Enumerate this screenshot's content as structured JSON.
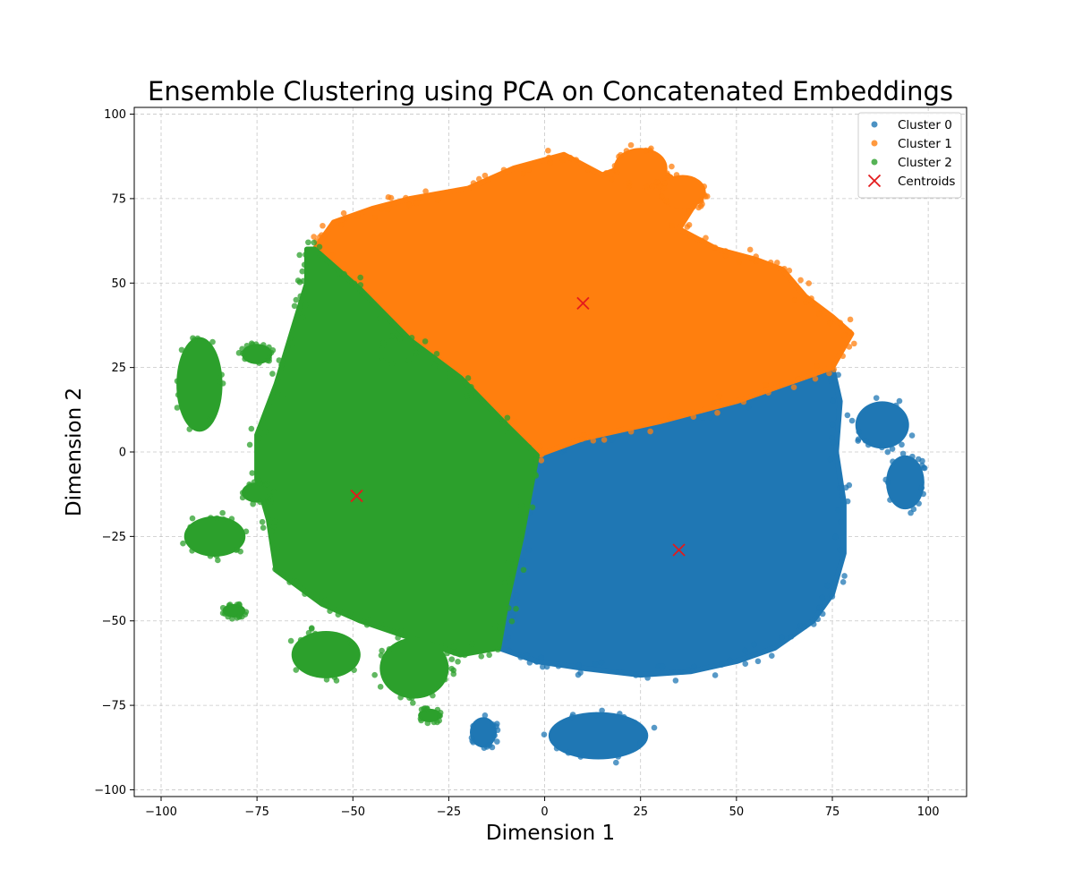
{
  "chart_data": {
    "type": "scatter",
    "title": "Ensemble Clustering using PCA on Concatenated Embeddings",
    "xlabel": "Dimension 1",
    "ylabel": "Dimension 2",
    "xlim": [
      -107,
      110
    ],
    "ylim": [
      -102,
      102
    ],
    "xticks": [
      -100,
      -75,
      -50,
      -25,
      0,
      25,
      50,
      75,
      100
    ],
    "yticks": [
      -100,
      -75,
      -50,
      -25,
      0,
      25,
      50,
      75,
      100
    ],
    "grid": true,
    "legend_position": "top-right",
    "series": [
      {
        "name": "Cluster 0",
        "color": "#1f77b4",
        "regions": [
          {
            "shape": "polygon",
            "points": [
              [
                -2,
                -1
              ],
              [
                10,
                4
              ],
              [
                30,
                9
              ],
              [
                50,
                15
              ],
              [
                65,
                21
              ],
              [
                75,
                25
              ],
              [
                77,
                15
              ],
              [
                76,
                0
              ],
              [
                78,
                -15
              ],
              [
                78,
                -30
              ],
              [
                75,
                -42
              ],
              [
                70,
                -50
              ],
              [
                60,
                -58
              ],
              [
                50,
                -62
              ],
              [
                38,
                -65
              ],
              [
                25,
                -66
              ],
              [
                10,
                -64
              ],
              [
                -2,
                -62
              ],
              [
                -12,
                -58
              ],
              [
                -10,
                -45
              ],
              [
                -6,
                -25
              ]
            ]
          },
          {
            "shape": "ellipse",
            "center": [
              88,
              8
            ],
            "rx": 7,
            "ry": 7
          },
          {
            "shape": "ellipse",
            "center": [
              94,
              -9
            ],
            "rx": 5,
            "ry": 8
          },
          {
            "shape": "ellipse",
            "center": [
              14,
              -84
            ],
            "rx": 13,
            "ry": 7
          },
          {
            "shape": "ellipse",
            "center": [
              -16,
              -83
            ],
            "rx": 3.5,
            "ry": 4.5
          }
        ]
      },
      {
        "name": "Cluster 1",
        "color": "#ff7f0e",
        "regions": [
          {
            "shape": "polygon",
            "points": [
              [
                -2,
                -1
              ],
              [
                -10,
                8
              ],
              [
                -22,
                22
              ],
              [
                -35,
                33
              ],
              [
                -48,
                48
              ],
              [
                -60,
                60
              ],
              [
                -55,
                68
              ],
              [
                -45,
                72
              ],
              [
                -35,
                75
              ],
              [
                -20,
                78
              ],
              [
                -8,
                84
              ],
              [
                5,
                88
              ],
              [
                15,
                82
              ],
              [
                22,
                85
              ],
              [
                32,
                82
              ],
              [
                40,
                75
              ],
              [
                35,
                66
              ],
              [
                45,
                60
              ],
              [
                55,
                57
              ],
              [
                62,
                54
              ],
              [
                68,
                46
              ],
              [
                75,
                40
              ],
              [
                80,
                35
              ],
              [
                75,
                25
              ],
              [
                65,
                21
              ],
              [
                50,
                15
              ],
              [
                30,
                9
              ],
              [
                10,
                4
              ]
            ]
          },
          {
            "shape": "ellipse",
            "center": [
              25,
              84
            ],
            "rx": 7,
            "ry": 6
          },
          {
            "shape": "ellipse",
            "center": [
              36,
              77
            ],
            "rx": 6,
            "ry": 5
          }
        ]
      },
      {
        "name": "Cluster 2",
        "color": "#2ca02c",
        "regions": [
          {
            "shape": "polygon",
            "points": [
              [
                -2,
                -1
              ],
              [
                -6,
                -25
              ],
              [
                -10,
                -45
              ],
              [
                -12,
                -58
              ],
              [
                -22,
                -60
              ],
              [
                -35,
                -55
              ],
              [
                -48,
                -50
              ],
              [
                -58,
                -45
              ],
              [
                -70,
                -35
              ],
              [
                -72,
                -20
              ],
              [
                -75,
                -8
              ],
              [
                -75,
                5
              ],
              [
                -70,
                20
              ],
              [
                -66,
                35
              ],
              [
                -62,
                50
              ],
              [
                -62,
                60
              ],
              [
                -60,
                60
              ],
              [
                -48,
                48
              ],
              [
                -35,
                33
              ],
              [
                -22,
                22
              ],
              [
                -10,
                8
              ]
            ]
          },
          {
            "shape": "ellipse",
            "center": [
              -90,
              20
            ],
            "rx": 6,
            "ry": 14
          },
          {
            "shape": "ellipse",
            "center": [
              -86,
              -25
            ],
            "rx": 8,
            "ry": 6
          },
          {
            "shape": "ellipse",
            "center": [
              -57,
              -60
            ],
            "rx": 9,
            "ry": 7
          },
          {
            "shape": "ellipse",
            "center": [
              -34,
              -64
            ],
            "rx": 9,
            "ry": 9
          },
          {
            "shape": "ellipse",
            "center": [
              -81,
              -47
            ],
            "rx": 3,
            "ry": 2
          },
          {
            "shape": "ellipse",
            "center": [
              -75,
              29
            ],
            "rx": 4,
            "ry": 3
          },
          {
            "shape": "ellipse",
            "center": [
              -75,
              -12
            ],
            "rx": 4,
            "ry": 3
          },
          {
            "shape": "ellipse",
            "center": [
              -30,
              -78
            ],
            "rx": 3,
            "ry": 2
          },
          {
            "shape": "ellipse",
            "center": [
              -38,
              30
            ],
            "rx": 5,
            "ry": 4
          }
        ]
      }
    ],
    "centroids": {
      "name": "Centroids",
      "color": "#e31a1c",
      "marker": "x",
      "points": [
        [
          10,
          44
        ],
        [
          -49,
          -13
        ],
        [
          35,
          -29
        ]
      ]
    }
  }
}
